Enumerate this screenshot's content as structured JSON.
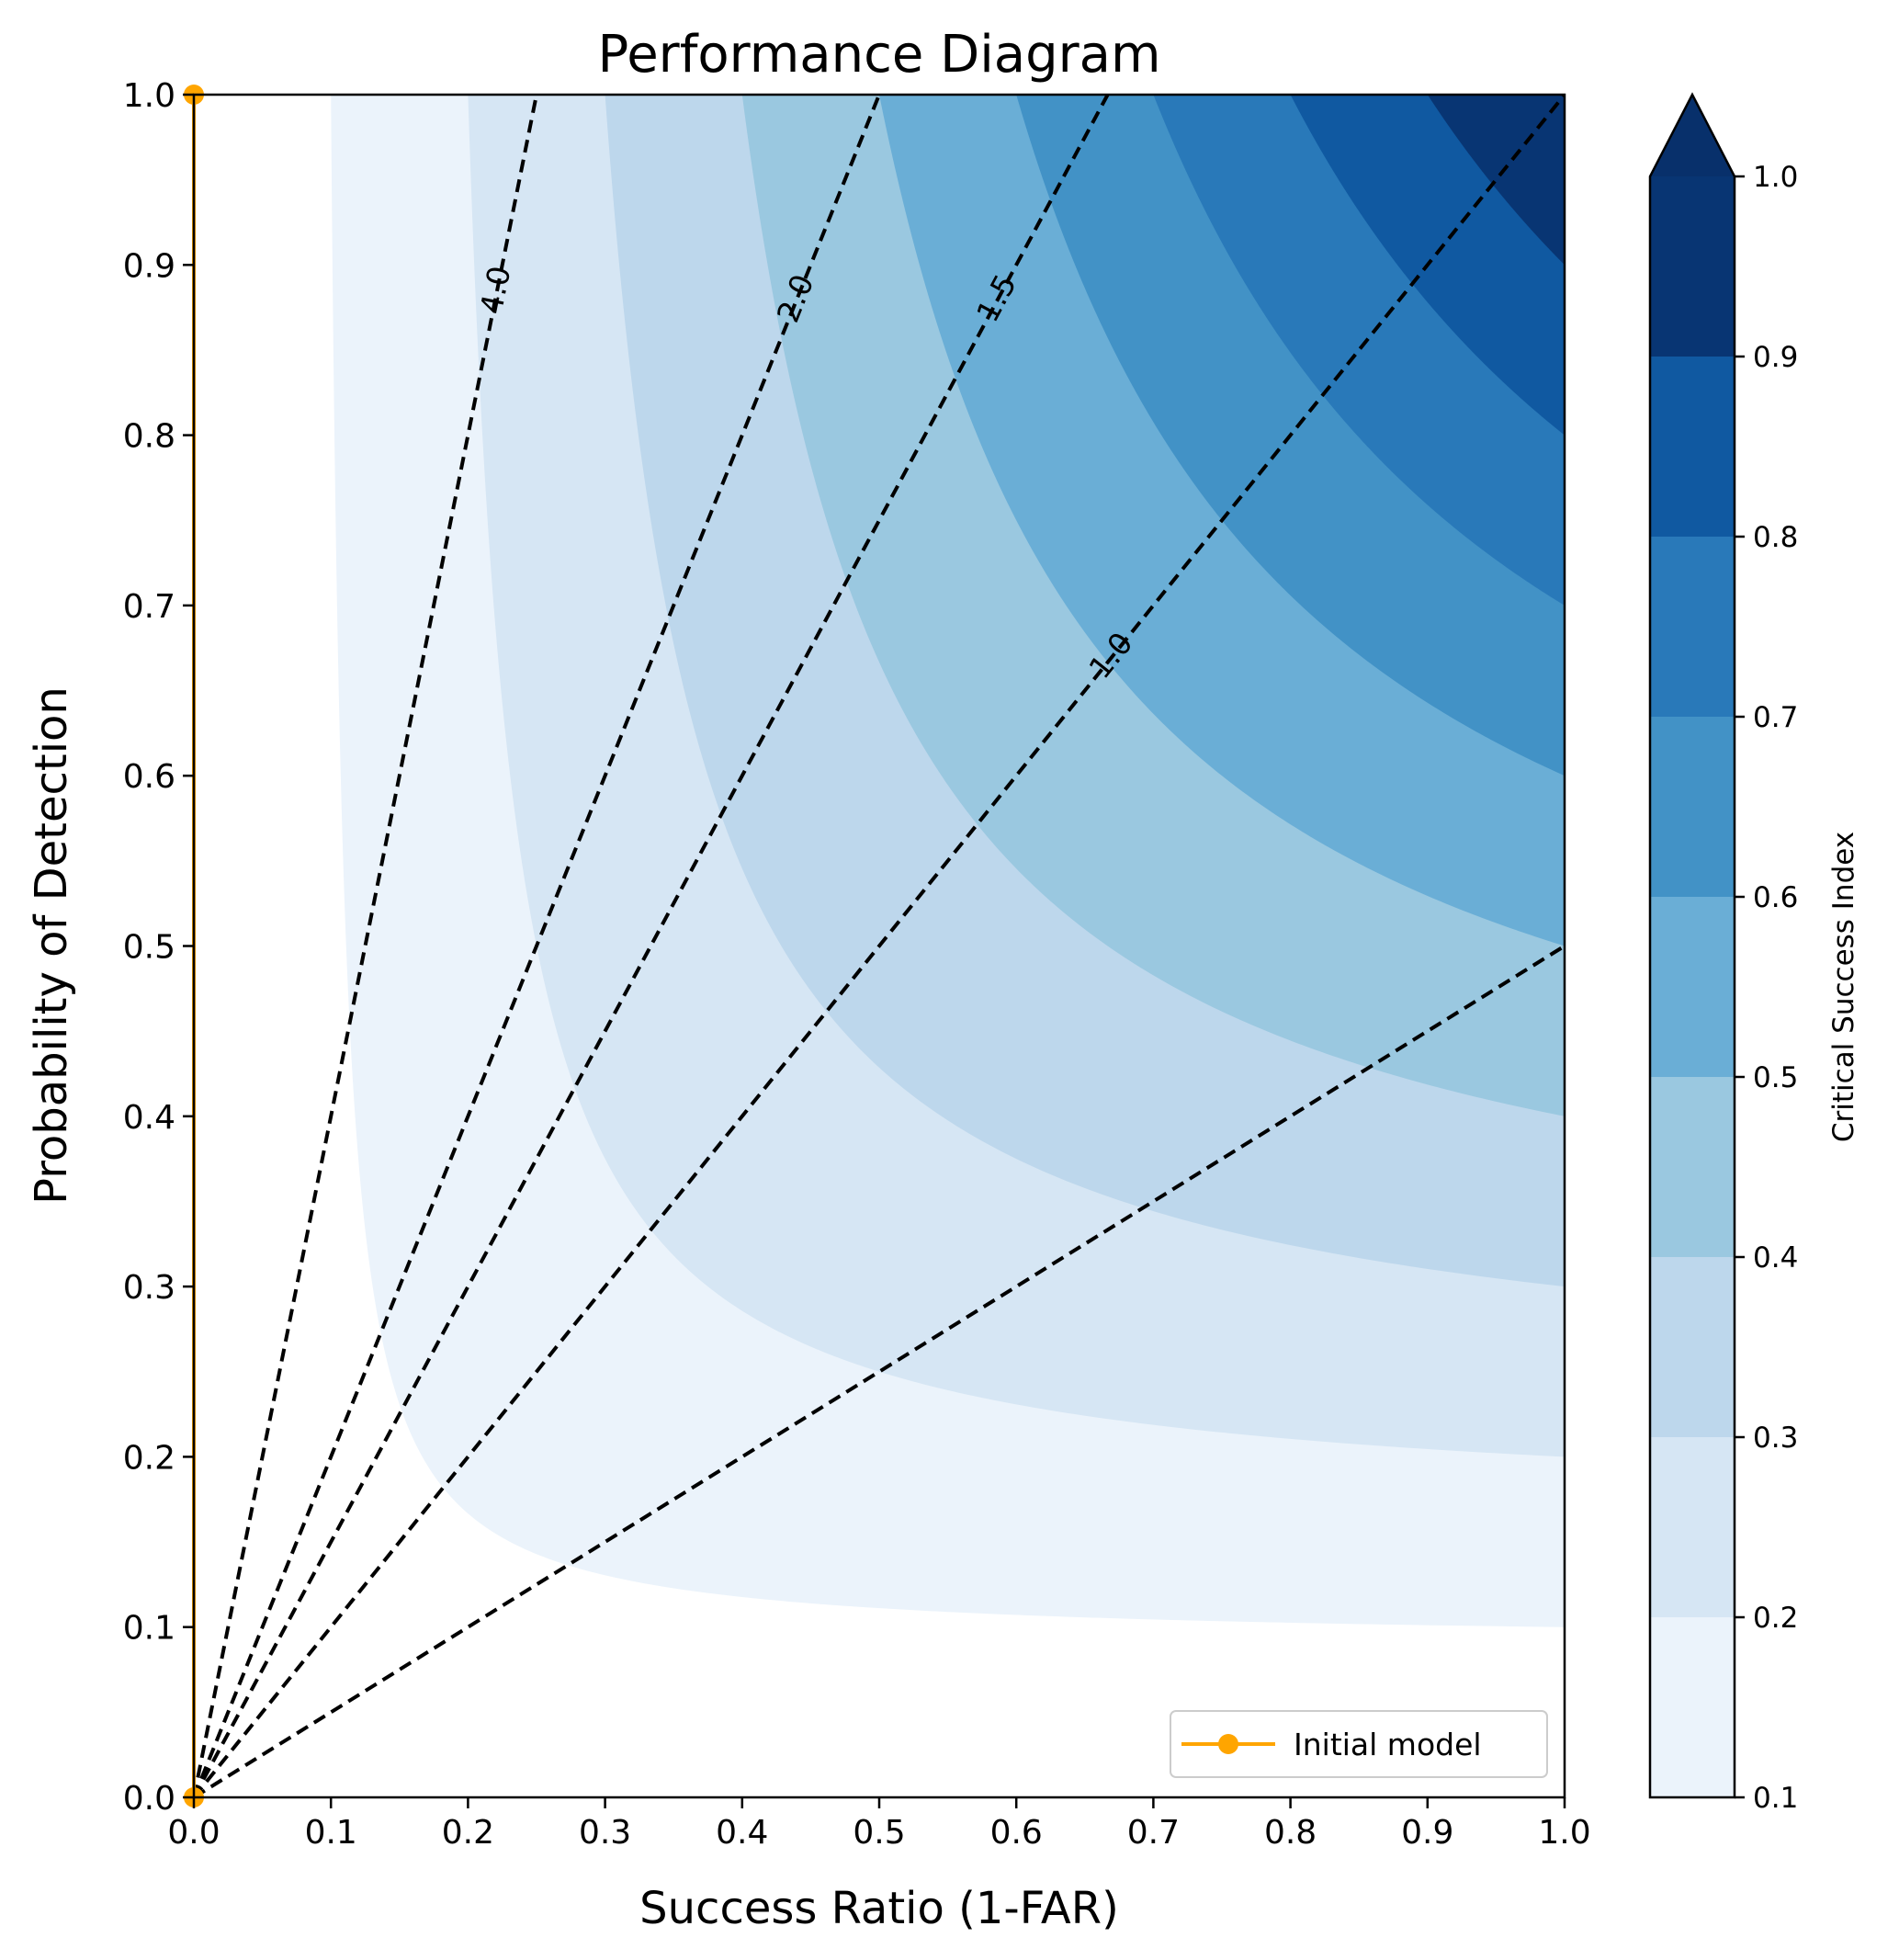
{
  "chart_data": {
    "type": "contour",
    "title": "Performance Diagram",
    "xlabel": "Success Ratio (1-FAR)",
    "ylabel": "Probability of Detection",
    "xlim": [
      0.0,
      1.0
    ],
    "ylim": [
      0.0,
      1.0
    ],
    "x_ticks": [
      "0.0",
      "0.1",
      "0.2",
      "0.3",
      "0.4",
      "0.5",
      "0.6",
      "0.7",
      "0.8",
      "0.9",
      "1.0"
    ],
    "y_ticks": [
      "0.0",
      "0.1",
      "0.2",
      "0.3",
      "0.4",
      "0.5",
      "0.6",
      "0.7",
      "0.8",
      "0.9",
      "1.0"
    ],
    "grid": false,
    "csi_contours": {
      "levels": [
        0.1,
        0.2,
        0.3,
        0.4,
        0.5,
        0.6,
        0.7,
        0.8,
        0.9,
        1.0
      ],
      "colors": [
        "#ebf3fb",
        "#d6e6f4",
        "#bdd7ec",
        "#9ac8e0",
        "#6aaed6",
        "#4292c6",
        "#2979b9",
        "#1059a1",
        "#083573"
      ],
      "extend_color": "#08306b",
      "extend": "max"
    },
    "colorbar": {
      "label": "Critical Success Index",
      "ticks": [
        "0.1",
        "0.2",
        "0.3",
        "0.4",
        "0.5",
        "0.6",
        "0.7",
        "0.8",
        "0.9",
        "1.0"
      ]
    },
    "bias_lines": [
      {
        "bias": 0.5,
        "label": ""
      },
      {
        "bias": 1.0,
        "label": "1.0"
      },
      {
        "bias": 1.5,
        "label": "1.5"
      },
      {
        "bias": 2.0,
        "label": "2.0"
      },
      {
        "bias": 4.0,
        "label": "4.0"
      }
    ],
    "series": [
      {
        "name": "Initial model",
        "color": "#ffa500",
        "marker": "circle",
        "points": [
          [
            0.0,
            0.0
          ],
          [
            0.0,
            1.0
          ]
        ]
      }
    ],
    "legend_position": "lower-right"
  }
}
